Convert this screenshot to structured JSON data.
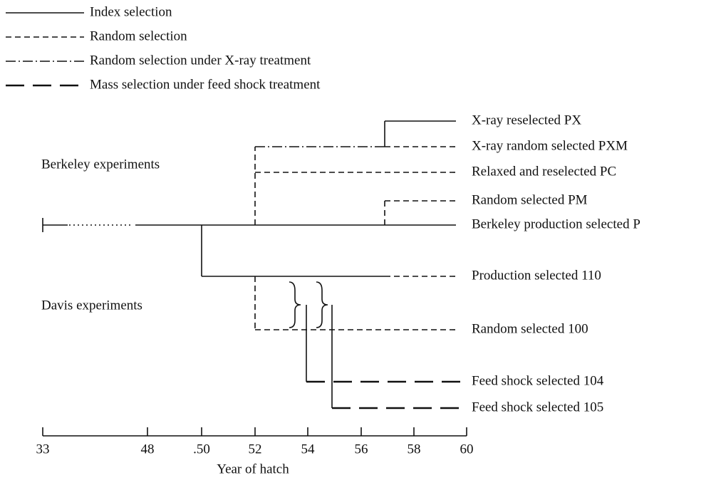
{
  "legend": [
    "Index selection",
    "Random selection",
    "Random selection under X-ray treatment",
    "Mass selection under feed shock treatment"
  ],
  "groups": [
    "Berkeley experiments",
    "Davis experiments"
  ],
  "lines": [
    "X-ray reselected PX",
    "X-ray random selected PXM",
    "Relaxed and reselected PC",
    "Random selected PM",
    "Berkeley production selected P",
    "Production selected 110",
    "Random selected 100",
    "Feed shock selected 104",
    "Feed shock selected 105"
  ],
  "axis": {
    "ticks": [
      "33",
      "48",
      ".50",
      "52",
      "54",
      "56",
      "58",
      "60"
    ],
    "title": "Year of hatch"
  }
}
